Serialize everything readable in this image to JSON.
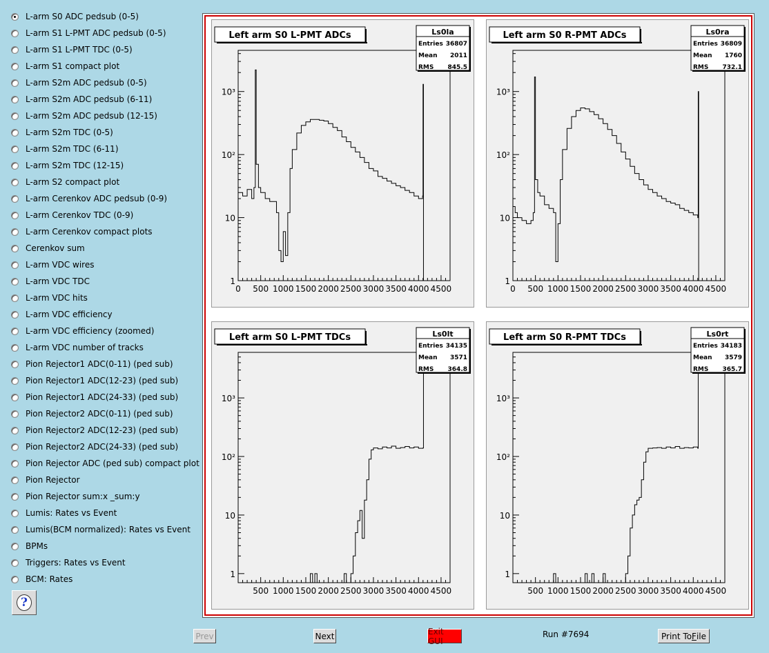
{
  "sidebar": {
    "items": [
      {
        "label": "L-arm S0 ADC pedsub (0-5)",
        "selected": true
      },
      {
        "label": "L-arm S1 L-PMT ADC pedsub (0-5)"
      },
      {
        "label": "L-arm S1 L-PMT TDC (0-5)"
      },
      {
        "label": "L-arm S1 compact plot"
      },
      {
        "label": "L-arm S2m ADC pedsub (0-5)"
      },
      {
        "label": "L-arm S2m ADC pedsub (6-11)"
      },
      {
        "label": "L-arm S2m ADC pedsub (12-15)"
      },
      {
        "label": "L-arm S2m TDC (0-5)"
      },
      {
        "label": "L-arm S2m TDC (6-11)"
      },
      {
        "label": "L-arm S2m TDC (12-15)"
      },
      {
        "label": "L-arm S2 compact plot"
      },
      {
        "label": "L-arm Cerenkov ADC pedsub (0-9)"
      },
      {
        "label": "L-arm Cerenkov TDC (0-9)"
      },
      {
        "label": "L-arm Cerenkov compact plots"
      },
      {
        "label": "Cerenkov sum"
      },
      {
        "label": "L-arm VDC wires"
      },
      {
        "label": "L-arm VDC TDC"
      },
      {
        "label": "L-arm VDC hits"
      },
      {
        "label": "L-arm VDC efficiency"
      },
      {
        "label": "L-arm VDC efficiency (zoomed)"
      },
      {
        "label": "L-arm VDC number of tracks"
      },
      {
        "label": "Pion Rejector1 ADC(0-11) (ped sub)"
      },
      {
        "label": "Pion Rejector1 ADC(12-23) (ped sub)"
      },
      {
        "label": "Pion Rejector1 ADC(24-33) (ped sub)"
      },
      {
        "label": "Pion Rejector2 ADC(0-11) (ped sub)"
      },
      {
        "label": "Pion Rejector2 ADC(12-23) (ped sub)"
      },
      {
        "label": "Pion Rejector2 ADC(24-33) (ped sub)"
      },
      {
        "label": "Pion Rejector ADC (ped sub) compact plot"
      },
      {
        "label": "Pion Rejector"
      },
      {
        "label": "Pion Rejector sum:x _sum:y"
      },
      {
        "label": "Lumis: Rates vs Event"
      },
      {
        "label": "Lumis(BCM normalized): Rates vs Event"
      },
      {
        "label": "BPMs"
      },
      {
        "label": "Triggers: Rates vs Event"
      },
      {
        "label": "BCM: Rates"
      }
    ],
    "help_icon": "question-mark-icon"
  },
  "footer": {
    "prev": "Prev",
    "next": "Next",
    "exit": "Exit GUI",
    "run": "Run #7694",
    "print_pre": "Print To ",
    "print_u": "F",
    "print_post": "ile"
  },
  "colors": {
    "background": "#add8e6",
    "canvas_border": "#cc0000",
    "exit_button": "#ff0000"
  },
  "pads": [
    {
      "title": "Left arm S0 L-PMT ADCs",
      "stats": {
        "name": "Ls0la",
        "entries_label": "Entries",
        "entries": "36807",
        "mean_label": "Mean",
        "mean": "2011",
        "rms_label": "RMS",
        "rms": "845.5"
      },
      "chart_data": {
        "type": "line",
        "log_y": true,
        "xlim": [
          0,
          4700
        ],
        "ylim": [
          1,
          4500
        ],
        "x_ticks": [
          "0",
          "500",
          "1000",
          "1500",
          "2000",
          "2500",
          "3000",
          "3500",
          "4000",
          "4500"
        ],
        "y_ticks": [
          "1",
          "10",
          "10²",
          "10³"
        ],
        "x": [
          0,
          100,
          200,
          300,
          350,
          380,
          400,
          450,
          500,
          600,
          700,
          800,
          850,
          900,
          950,
          1000,
          1050,
          1100,
          1150,
          1200,
          1300,
          1400,
          1500,
          1600,
          1700,
          1800,
          1900,
          2000,
          2100,
          2200,
          2300,
          2400,
          2500,
          2600,
          2700,
          2800,
          2900,
          3000,
          3100,
          3200,
          3300,
          3400,
          3500,
          3600,
          3700,
          3800,
          3900,
          4000,
          4050,
          4090,
          4100,
          4110,
          4120
        ],
        "y": [
          25,
          22,
          28,
          20,
          30,
          2200,
          70,
          30,
          25,
          20,
          18,
          18,
          12,
          3,
          2,
          6,
          2.5,
          12,
          60,
          120,
          220,
          290,
          330,
          360,
          360,
          350,
          340,
          310,
          270,
          240,
          190,
          160,
          130,
          110,
          90,
          75,
          60,
          55,
          45,
          42,
          38,
          35,
          32,
          30,
          27,
          25,
          22,
          20,
          20,
          22,
          1300,
          1,
          1
        ]
      }
    },
    {
      "title": "Left arm S0 R-PMT ADCs",
      "stats": {
        "name": "Ls0ra",
        "entries_label": "Entries",
        "entries": "36809",
        "mean_label": "Mean",
        "mean": "1760",
        "rms_label": "RMS",
        "rms": "732.1"
      },
      "chart_data": {
        "type": "line",
        "log_y": true,
        "xlim": [
          0,
          4700
        ],
        "ylim": [
          1,
          4500
        ],
        "x_ticks": [
          "0",
          "500",
          "1000",
          "1500",
          "2000",
          "2500",
          "3000",
          "3500",
          "4000",
          "4500"
        ],
        "y_ticks": [
          "1",
          "10",
          "10²",
          "10³"
        ],
        "x": [
          0,
          50,
          100,
          200,
          300,
          400,
          450,
          480,
          500,
          550,
          600,
          700,
          800,
          900,
          950,
          1000,
          1050,
          1100,
          1200,
          1300,
          1400,
          1500,
          1600,
          1700,
          1800,
          1900,
          2000,
          2100,
          2200,
          2300,
          2400,
          2500,
          2600,
          2700,
          2800,
          2900,
          3000,
          3100,
          3200,
          3300,
          3400,
          3500,
          3600,
          3700,
          3800,
          3900,
          4000,
          4100,
          4110,
          4120,
          4130
        ],
        "y": [
          15,
          12,
          10,
          9,
          8,
          9,
          12,
          1700,
          40,
          25,
          22,
          16,
          14,
          12,
          2,
          8,
          40,
          120,
          260,
          400,
          500,
          550,
          530,
          480,
          430,
          370,
          310,
          250,
          200,
          150,
          110,
          85,
          65,
          50,
          40,
          33,
          28,
          25,
          22,
          20,
          18,
          17,
          16,
          14,
          13,
          12,
          11,
          10,
          1000,
          1,
          1
        ]
      }
    },
    {
      "title": "Left arm S0 L-PMT TDCs",
      "stats": {
        "name": "Ls0lt",
        "entries_label": "Entries",
        "entries": "34135",
        "mean_label": "Mean",
        "mean": "3571",
        "rms_label": "RMS",
        "rms": "364.8"
      },
      "chart_data": {
        "type": "line",
        "log_y": true,
        "xlim": [
          0,
          4700
        ],
        "ylim": [
          0.7,
          6000
        ],
        "x_ticks": [
          "500",
          "1000",
          "1500",
          "2000",
          "2500",
          "3000",
          "3500",
          "4000",
          "4500"
        ],
        "y_ticks": [
          "1",
          "10",
          "10²",
          "10³"
        ],
        "x": [
          1550,
          1600,
          1650,
          1700,
          1750,
          2300,
          2350,
          2400,
          2500,
          2550,
          2600,
          2650,
          2700,
          2750,
          2800,
          2850,
          2900,
          2950,
          3000,
          3100,
          3200,
          3300,
          3400,
          3500,
          3600,
          3700,
          3800,
          3900,
          4000,
          4100,
          4110,
          4120
        ],
        "y": [
          0.7,
          1,
          0.7,
          1,
          0.7,
          0.7,
          1,
          0.7,
          1,
          2,
          5,
          8,
          12,
          4,
          18,
          40,
          90,
          130,
          140,
          135,
          145,
          140,
          150,
          138,
          142,
          148,
          140,
          145,
          138,
          140,
          5000,
          5000
        ]
      }
    },
    {
      "title": "Left arm S0 R-PMT TDCs",
      "stats": {
        "name": "Ls0rt",
        "entries_label": "Entries",
        "entries": "34183",
        "mean_label": "Mean",
        "mean": "3579",
        "rms_label": "RMS",
        "rms": "365.7"
      },
      "chart_data": {
        "type": "line",
        "log_y": true,
        "xlim": [
          0,
          4700
        ],
        "ylim": [
          0.7,
          6000
        ],
        "x_ticks": [
          "500",
          "1000",
          "1500",
          "2000",
          "2500",
          "3000",
          "3500",
          "4000",
          "4500"
        ],
        "y_ticks": [
          "1",
          "10",
          "10²",
          "10³"
        ],
        "x": [
          850,
          900,
          950,
          1550,
          1600,
          1650,
          1750,
          1800,
          2000,
          2050,
          2500,
          2550,
          2600,
          2650,
          2700,
          2750,
          2800,
          2850,
          2900,
          2950,
          3000,
          3100,
          3200,
          3300,
          3400,
          3500,
          3600,
          3700,
          3800,
          3900,
          4000,
          4100,
          4110,
          4120
        ],
        "y": [
          0.7,
          1,
          0.7,
          0.7,
          1,
          0.7,
          1,
          0.7,
          1,
          0.7,
          1,
          2,
          6,
          10,
          15,
          18,
          20,
          40,
          80,
          120,
          138,
          140,
          142,
          138,
          145,
          140,
          148,
          138,
          142,
          140,
          145,
          138,
          5000,
          5000
        ]
      }
    }
  ]
}
